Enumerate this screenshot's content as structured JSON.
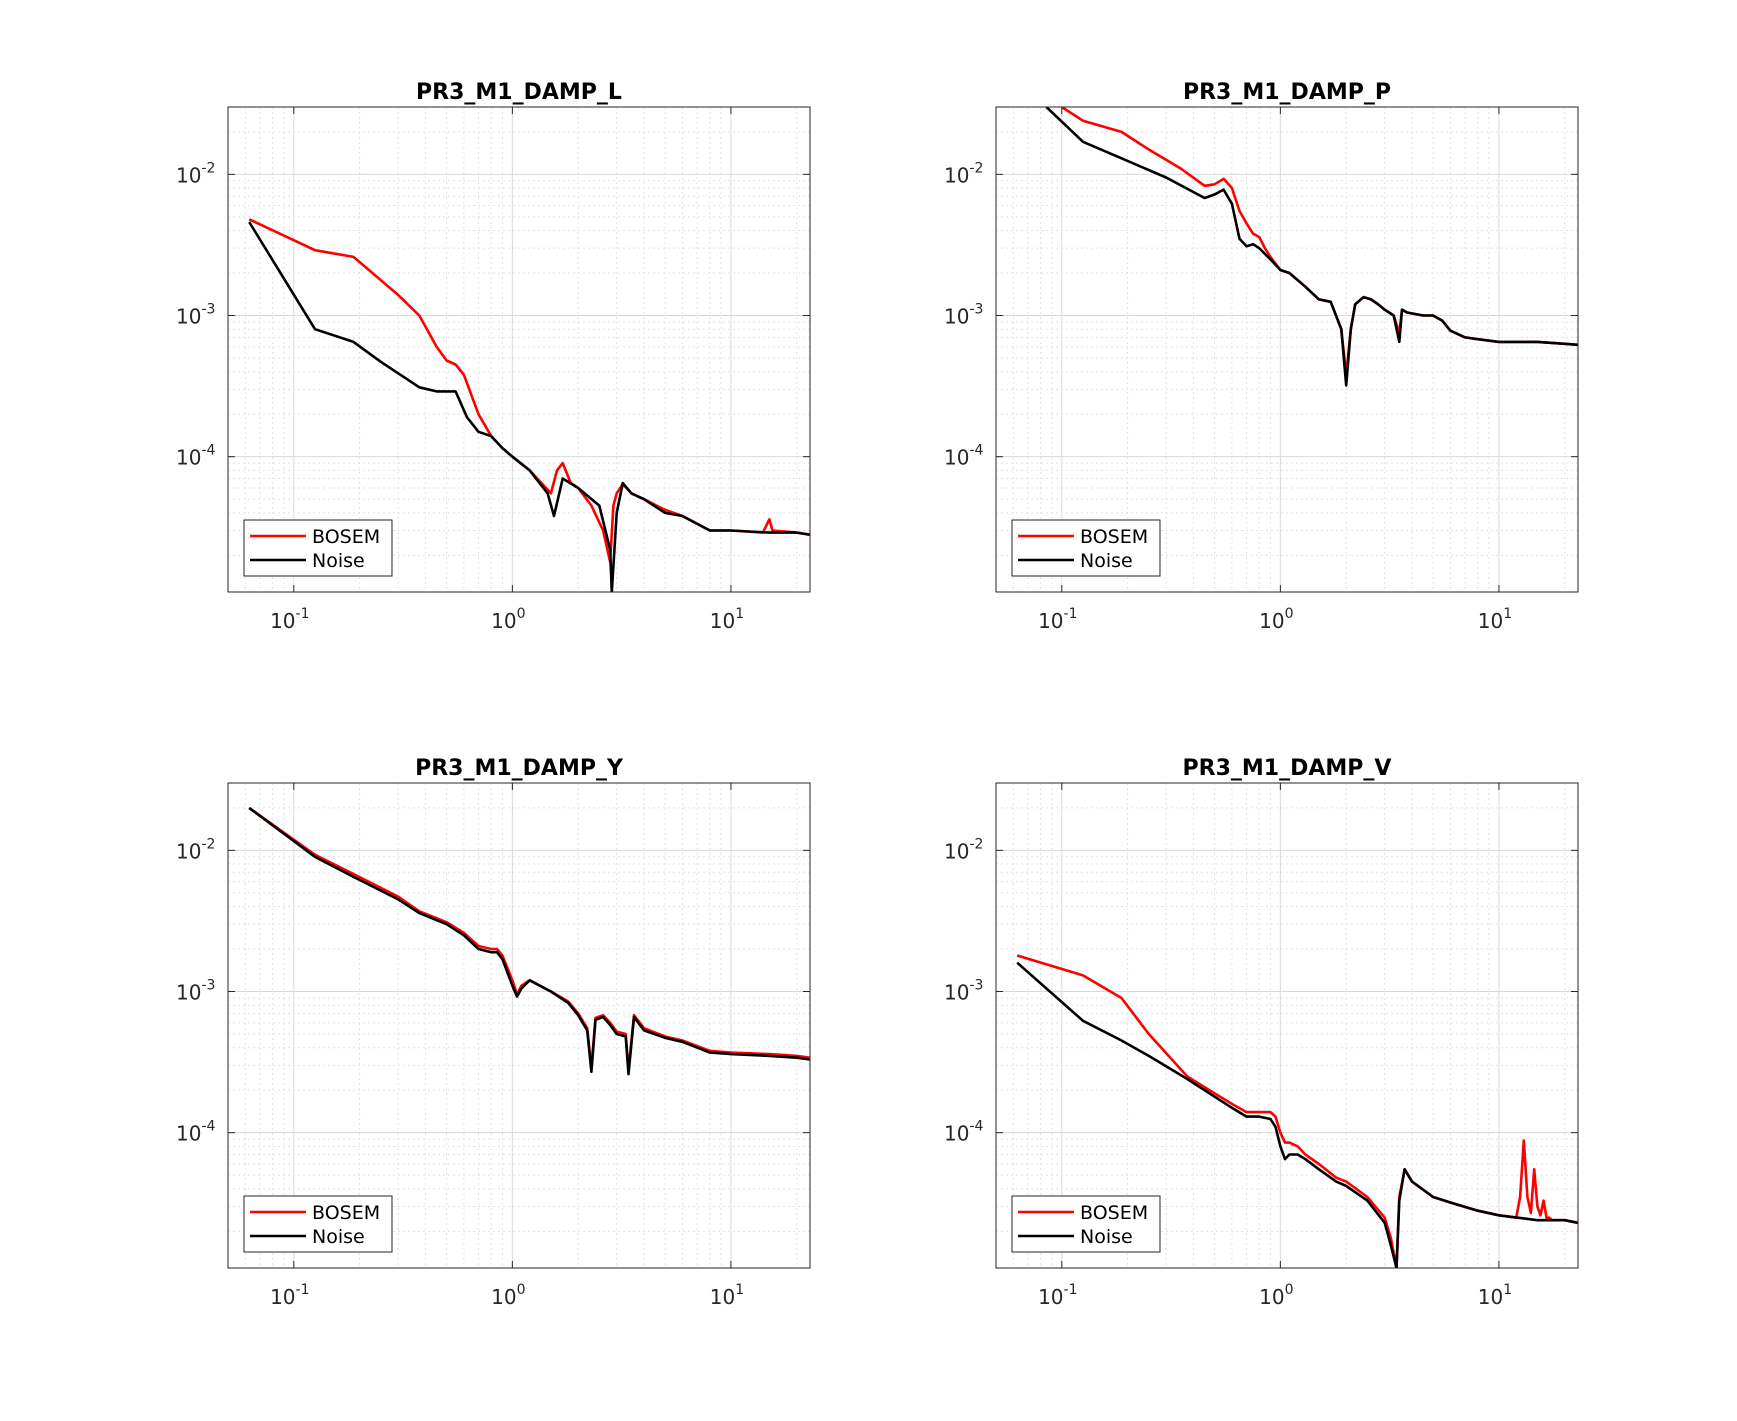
{
  "chart_data": [
    {
      "type": "line",
      "title": "PR3_M1_DAMP_L",
      "xlabel": "",
      "ylabel": "",
      "xscale": "log",
      "yscale": "log",
      "xlim": [
        0.05,
        23
      ],
      "ylim": [
        1.1e-05,
        0.03
      ],
      "grid": true,
      "legend": "bottom-left",
      "x_ticks": [
        "-1",
        "0",
        "1"
      ],
      "y_ticks": [
        "-4",
        "-3",
        "-2"
      ],
      "series": [
        {
          "name": "BOSEM",
          "color": "#ff0000",
          "x": [
            0.0625,
            0.125,
            0.1875,
            0.3,
            0.375,
            0.45,
            0.5,
            0.55,
            0.6,
            0.7,
            0.8,
            0.9,
            1.0,
            1.2,
            1.5,
            1.6,
            1.7,
            1.85,
            2.0,
            2.3,
            2.6,
            2.8,
            2.9,
            3.0,
            3.2,
            3.5,
            4.0,
            5.0,
            6.0,
            8.0,
            10,
            14,
            15,
            15.5,
            20,
            23
          ],
          "y": [
            0.0048,
            0.0029,
            0.0026,
            0.0014,
            0.001,
            0.0006,
            0.00048,
            0.00045,
            0.00038,
            0.0002,
            0.00014,
            0.000115,
            0.0001,
            8e-05,
            5.5e-05,
            8e-05,
            9e-05,
            6.5e-05,
            6e-05,
            4.5e-05,
            3e-05,
            1.8e-05,
            4.5e-05,
            5.5e-05,
            6.4e-05,
            5.5e-05,
            5e-05,
            4.2e-05,
            3.8e-05,
            3e-05,
            3e-05,
            2.9e-05,
            3.6e-05,
            3e-05,
            2.9e-05,
            2.8e-05
          ]
        },
        {
          "name": "Noise",
          "color": "#000000",
          "x": [
            0.0625,
            0.125,
            0.1875,
            0.25,
            0.375,
            0.45,
            0.55,
            0.62,
            0.7,
            0.8,
            0.9,
            1.0,
            1.2,
            1.45,
            1.55,
            1.7,
            2.0,
            2.5,
            2.8,
            2.85,
            3.0,
            3.2,
            3.5,
            4.0,
            5.0,
            6.0,
            8.0,
            10,
            15,
            20,
            23
          ],
          "y": [
            0.0046,
            0.0008,
            0.00065,
            0.00047,
            0.00031,
            0.00029,
            0.00029,
            0.00019,
            0.00015,
            0.00014,
            0.000115,
            0.0001,
            8e-05,
            5.5e-05,
            3.8e-05,
            7e-05,
            6e-05,
            4.5e-05,
            2.2e-05,
            1.1e-05,
            4e-05,
            6.5e-05,
            5.5e-05,
            5e-05,
            4e-05,
            3.8e-05,
            3e-05,
            3e-05,
            2.9e-05,
            2.9e-05,
            2.8e-05
          ]
        }
      ]
    },
    {
      "type": "line",
      "title": "PR3_M1_DAMP_P",
      "xlabel": "",
      "ylabel": "",
      "xscale": "log",
      "yscale": "log",
      "xlim": [
        0.05,
        23
      ],
      "ylim": [
        1.1e-05,
        0.03
      ],
      "grid": true,
      "legend": "bottom-left",
      "x_ticks": [
        "-1",
        "0",
        "1"
      ],
      "y_ticks": [
        "-4",
        "-3",
        "-2"
      ],
      "series": [
        {
          "name": "BOSEM",
          "color": "#ff0000",
          "x": [
            0.1,
            0.125,
            0.1875,
            0.25,
            0.35,
            0.45,
            0.5,
            0.55,
            0.6,
            0.65,
            0.7,
            0.75,
            0.8,
            0.85,
            0.9,
            1.0,
            1.1,
            1.3,
            1.5,
            1.7,
            1.9,
            2.0,
            2.1,
            2.2,
            2.4,
            2.6,
            2.8,
            3.0,
            3.3,
            3.5,
            3.6,
            3.8,
            4.5,
            5.0,
            5.5,
            6.0,
            7.0,
            8.0,
            10,
            15,
            20,
            23
          ],
          "y": [
            0.03,
            0.024,
            0.02,
            0.015,
            0.011,
            0.0083,
            0.0085,
            0.0093,
            0.008,
            0.0055,
            0.0045,
            0.0038,
            0.0036,
            0.003,
            0.0026,
            0.0021,
            0.002,
            0.0016,
            0.0013,
            0.00125,
            0.0008,
            0.00038,
            0.0008,
            0.0012,
            0.00135,
            0.0013,
            0.0012,
            0.0011,
            0.001,
            0.00075,
            0.0011,
            0.00105,
            0.001,
            0.001,
            0.00092,
            0.00078,
            0.0007,
            0.00068,
            0.00065,
            0.00065,
            0.00063,
            0.00062
          ]
        },
        {
          "name": "Noise",
          "color": "#000000",
          "x": [
            0.085,
            0.125,
            0.1875,
            0.3,
            0.45,
            0.5,
            0.55,
            0.6,
            0.65,
            0.7,
            0.75,
            0.8,
            0.9,
            1.0,
            1.1,
            1.3,
            1.5,
            1.7,
            1.9,
            2.0,
            2.1,
            2.2,
            2.4,
            2.6,
            2.8,
            3.0,
            3.3,
            3.5,
            3.6,
            3.8,
            4.5,
            5.0,
            5.5,
            6.0,
            7.0,
            8.0,
            10,
            15,
            20,
            23
          ],
          "y": [
            0.03,
            0.017,
            0.013,
            0.0095,
            0.0068,
            0.0072,
            0.0078,
            0.0062,
            0.0035,
            0.0031,
            0.0032,
            0.003,
            0.0025,
            0.0021,
            0.002,
            0.0016,
            0.0013,
            0.00125,
            0.0008,
            0.00032,
            0.0008,
            0.0012,
            0.00135,
            0.0013,
            0.0012,
            0.0011,
            0.001,
            0.00065,
            0.0011,
            0.00105,
            0.001,
            0.001,
            0.00092,
            0.00078,
            0.0007,
            0.00068,
            0.00065,
            0.00065,
            0.00063,
            0.00062
          ]
        }
      ]
    },
    {
      "type": "line",
      "title": "PR3_M1_DAMP_Y",
      "xlabel": "",
      "ylabel": "",
      "xscale": "log",
      "yscale": "log",
      "xlim": [
        0.05,
        23
      ],
      "ylim": [
        1.1e-05,
        0.03
      ],
      "grid": true,
      "legend": "bottom-left",
      "x_ticks": [
        "-1",
        "0",
        "1"
      ],
      "y_ticks": [
        "-4",
        "-3",
        "-2"
      ],
      "series": [
        {
          "name": "BOSEM",
          "color": "#ff0000",
          "x": [
            0.0625,
            0.125,
            0.1875,
            0.3,
            0.375,
            0.5,
            0.6,
            0.7,
            0.8,
            0.85,
            0.9,
            1.0,
            1.05,
            1.1,
            1.2,
            1.5,
            1.8,
            2.0,
            2.2,
            2.3,
            2.4,
            2.6,
            2.8,
            3.0,
            3.3,
            3.4,
            3.6,
            4.0,
            5.0,
            6.0,
            8.0,
            10,
            15,
            20,
            23
          ],
          "y": [
            0.02,
            0.0093,
            0.0068,
            0.0047,
            0.0037,
            0.0031,
            0.0026,
            0.0021,
            0.002,
            0.002,
            0.0018,
            0.0012,
            0.00095,
            0.0011,
            0.0012,
            0.001,
            0.00085,
            0.0007,
            0.00055,
            0.00029,
            0.00065,
            0.00068,
            0.0006,
            0.00052,
            0.0005,
            0.00028,
            0.00068,
            0.00055,
            0.00048,
            0.00045,
            0.00038,
            0.00037,
            0.00036,
            0.00035,
            0.00034
          ]
        },
        {
          "name": "Noise",
          "color": "#000000",
          "x": [
            0.0625,
            0.125,
            0.1875,
            0.3,
            0.375,
            0.5,
            0.6,
            0.7,
            0.8,
            0.85,
            0.9,
            1.0,
            1.05,
            1.1,
            1.2,
            1.5,
            1.8,
            2.0,
            2.2,
            2.3,
            2.4,
            2.6,
            2.8,
            3.0,
            3.3,
            3.4,
            3.6,
            4.0,
            5.0,
            6.0,
            8.0,
            10,
            15,
            20,
            23
          ],
          "y": [
            0.02,
            0.009,
            0.0065,
            0.0045,
            0.0036,
            0.003,
            0.0025,
            0.002,
            0.0019,
            0.0019,
            0.0017,
            0.0011,
            0.00092,
            0.00105,
            0.0012,
            0.001,
            0.00083,
            0.00068,
            0.00053,
            0.00027,
            0.00063,
            0.00066,
            0.00058,
            0.0005,
            0.00048,
            0.00026,
            0.00066,
            0.00053,
            0.00047,
            0.00044,
            0.00037,
            0.00036,
            0.00035,
            0.00034,
            0.00033
          ]
        }
      ]
    },
    {
      "type": "line",
      "title": "PR3_M1_DAMP_V",
      "xlabel": "",
      "ylabel": "",
      "xscale": "log",
      "yscale": "log",
      "xlim": [
        0.05,
        23
      ],
      "ylim": [
        1.1e-05,
        0.03
      ],
      "grid": true,
      "legend": "bottom-left",
      "x_ticks": [
        "-1",
        "0",
        "1"
      ],
      "y_ticks": [
        "-4",
        "-3",
        "-2"
      ],
      "series": [
        {
          "name": "BOSEM",
          "color": "#ff0000",
          "x": [
            0.0625,
            0.125,
            0.1875,
            0.25,
            0.375,
            0.5,
            0.6,
            0.7,
            0.8,
            0.9,
            0.95,
            1.0,
            1.05,
            1.1,
            1.2,
            1.3,
            1.5,
            1.8,
            2.0,
            2.5,
            3.0,
            3.2,
            3.4,
            3.5,
            3.7,
            4.0,
            5.0,
            6.0,
            8.0,
            10,
            12,
            12.5,
            13.0,
            13.5,
            14,
            14.5,
            15.0,
            15.5,
            16,
            16.5,
            17,
            17.5,
            18,
            20,
            23
          ],
          "y": [
            0.0018,
            0.0013,
            0.0009,
            0.0005,
            0.00025,
            0.00019,
            0.00016,
            0.00014,
            0.00014,
            0.00014,
            0.00013,
            0.0001,
            8.5e-05,
            8.5e-05,
            8e-05,
            7e-05,
            6e-05,
            4.8e-05,
            4.5e-05,
            3.5e-05,
            2.5e-05,
            1.8e-05,
            1.1e-05,
            3.5e-05,
            5.5e-05,
            4.5e-05,
            3.5e-05,
            3.2e-05,
            2.8e-05,
            2.6e-05,
            2.5e-05,
            3.5e-05,
            8.8e-05,
            3.5e-05,
            2.7e-05,
            5.5e-05,
            3e-05,
            2.6e-05,
            3.3e-05,
            2.5e-05,
            2.5e-05,
            2.4e-05,
            2.4e-05,
            2.4e-05,
            2.3e-05
          ]
        },
        {
          "name": "Noise",
          "color": "#000000",
          "x": [
            0.0625,
            0.125,
            0.1875,
            0.25,
            0.375,
            0.5,
            0.6,
            0.7,
            0.8,
            0.9,
            0.95,
            1.0,
            1.05,
            1.1,
            1.2,
            1.3,
            1.5,
            1.8,
            2.0,
            2.5,
            3.0,
            3.2,
            3.4,
            3.5,
            3.7,
            4.0,
            5.0,
            6.0,
            8.0,
            10,
            15,
            20,
            23
          ],
          "y": [
            0.0016,
            0.00062,
            0.00045,
            0.00035,
            0.00024,
            0.00018,
            0.00015,
            0.00013,
            0.00013,
            0.000125,
            0.00011,
            8e-05,
            6.5e-05,
            7e-05,
            7e-05,
            6.5e-05,
            5.5e-05,
            4.5e-05,
            4.2e-05,
            3.3e-05,
            2.3e-05,
            1.6e-05,
            1.1e-05,
            3.3e-05,
            5.5e-05,
            4.5e-05,
            3.5e-05,
            3.2e-05,
            2.8e-05,
            2.6e-05,
            2.4e-05,
            2.4e-05,
            2.3e-05
          ]
        }
      ]
    }
  ]
}
